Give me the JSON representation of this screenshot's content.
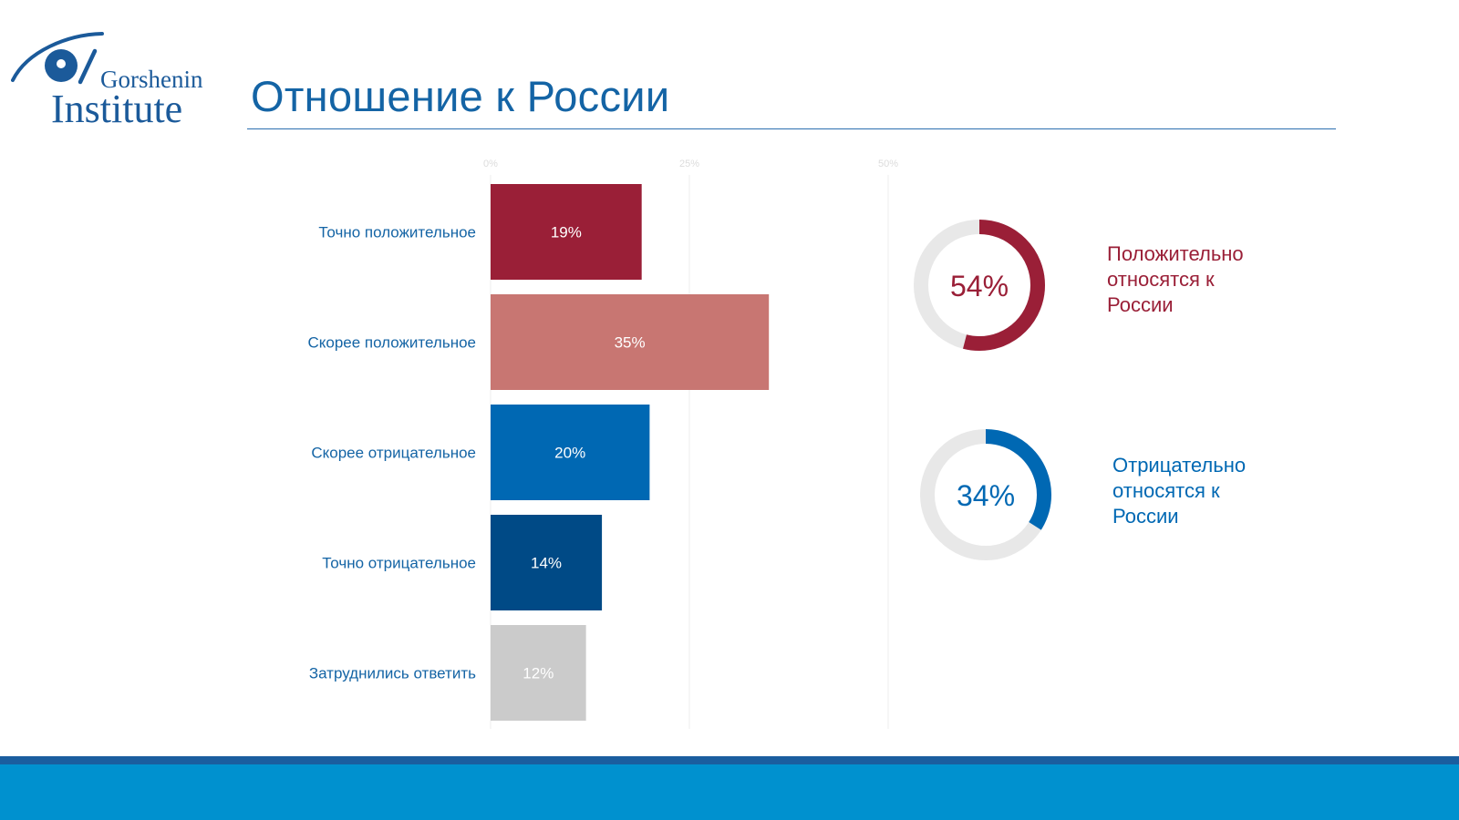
{
  "brand": {
    "logo_line1": "Gorshenin",
    "logo_line2": "Institute",
    "color": "#1b5a9a"
  },
  "page": {
    "title": "Отношение к России"
  },
  "colors": {
    "definitely_positive": "#9a1f37",
    "rather_positive": "#c87672",
    "rather_negative": "#0068b3",
    "definitely_negative": "#004a86",
    "undecided": "#cbcbcb",
    "title_blue": "#1464a5",
    "footer_band": "#0091cf",
    "footer_stripe": "#1a5e9f"
  },
  "chart_data": [
    {
      "type": "bar",
      "orientation": "horizontal",
      "title": "",
      "xlabel": "",
      "ylabel": "",
      "xlim": [
        0,
        50
      ],
      "x_ticks": [
        "0%",
        "25%",
        "50%"
      ],
      "grid": true,
      "categories": [
        "Точно положительное",
        "Скорее положительное",
        "Скорее отрицательное",
        "Точно отрицательное",
        "Затруднились ответить"
      ],
      "values": [
        19,
        35,
        20,
        14,
        12
      ],
      "value_labels": [
        "19%",
        "35%",
        "20%",
        "14%",
        "12%"
      ],
      "bar_colors": [
        "#9a1f37",
        "#c87672",
        "#0068b3",
        "#004a86",
        "#cbcbcb"
      ]
    },
    {
      "type": "pie",
      "style": "donut",
      "value": 54,
      "value_label": "54%",
      "label": "Положительно относятся к России",
      "label_lines": [
        "Положительно",
        "относятся к",
        "России"
      ],
      "color": "#9a1f37",
      "track_color": "#e8e8e8"
    },
    {
      "type": "pie",
      "style": "donut",
      "value": 34,
      "value_label": "34%",
      "label": "Отрицательно относятся к России",
      "label_lines": [
        "Отрицательно",
        "относятся к",
        "России"
      ],
      "color": "#0068b3",
      "track_color": "#e8e8e8"
    }
  ]
}
